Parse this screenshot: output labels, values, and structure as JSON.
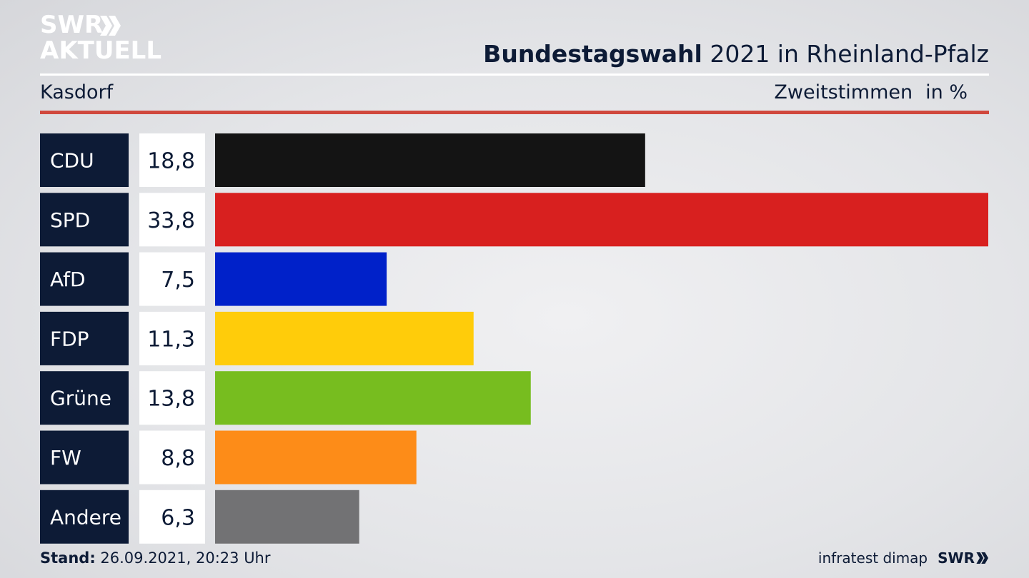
{
  "logo": {
    "line1": "SWR",
    "line2": "AKTUELL"
  },
  "header": {
    "title_bold": "Bundestagswahl",
    "title_rest": "2021 in Rheinland-Pfalz",
    "place": "Kasdorf",
    "vote_type": "Zweitstimmen",
    "unit": "in %"
  },
  "footer": {
    "stand_label": "Stand:",
    "stand_value": "26.09.2021, 20:23 Uhr",
    "source": "infratest dimap",
    "brand": "SWR"
  },
  "chart_data": {
    "type": "bar",
    "orientation": "horizontal",
    "title": "Bundestagswahl 2021 in Rheinland-Pfalz",
    "subtitle": "Kasdorf",
    "unit": "in %",
    "categories": [
      "CDU",
      "SPD",
      "AfD",
      "FDP",
      "Grüne",
      "FW",
      "Andere"
    ],
    "values": [
      18.8,
      33.8,
      7.5,
      11.3,
      13.8,
      8.8,
      6.3
    ],
    "labels": [
      "18,8",
      "33,8",
      "7,5",
      "11,3",
      "13,8",
      "8,8",
      "6,3"
    ],
    "colors": [
      "#141414",
      "#d8201f",
      "#0021c9",
      "#ffcc0a",
      "#77bd1f",
      "#fd8c18",
      "#727274"
    ],
    "xlim": [
      0,
      33.8
    ],
    "grid": false,
    "legend": "none"
  }
}
